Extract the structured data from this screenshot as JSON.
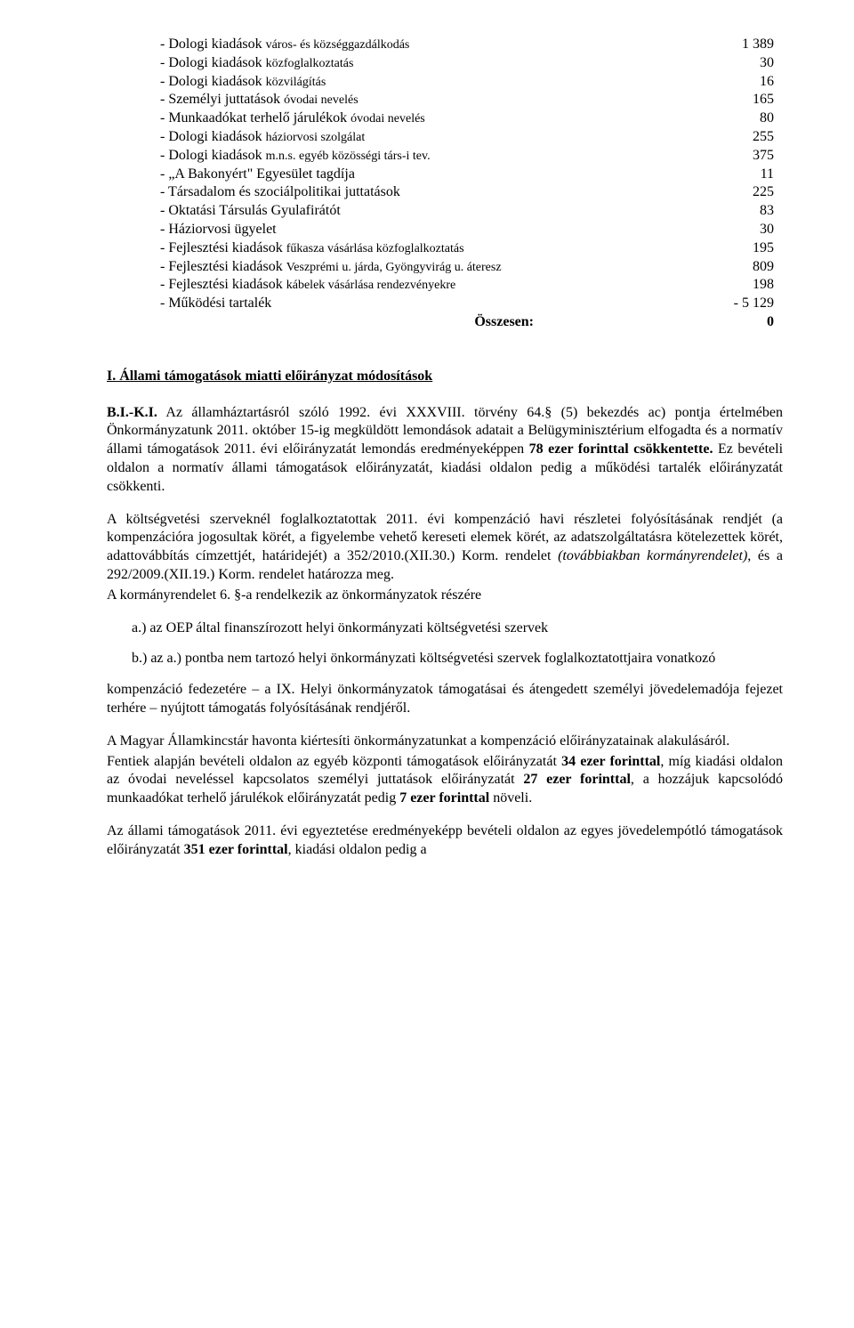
{
  "budget": {
    "rows": [
      {
        "label_main": "- Dologi kiadások ",
        "label_small": "város- és községgazdálkodás",
        "value": "1 389"
      },
      {
        "label_main": "- Dologi kiadások ",
        "label_small": "közfoglalkoztatás",
        "value": "30"
      },
      {
        "label_main": "- Dologi kiadások ",
        "label_small": "közvilágítás",
        "value": "16"
      },
      {
        "label_main": "- Személyi juttatások ",
        "label_small": "óvodai nevelés",
        "value": "165"
      },
      {
        "label_main": "- Munkaadókat terhelő járulékok ",
        "label_small": "óvodai nevelés",
        "value": "80"
      },
      {
        "label_main": "- Dologi kiadások ",
        "label_small": "háziorvosi szolgálat",
        "value": "255"
      },
      {
        "label_main": "- Dologi kiadások ",
        "label_small": "m.n.s. egyéb közösségi társ-i tev.",
        "value": "375"
      },
      {
        "label_main": "- „A Bakonyért\" Egyesület tagdíja",
        "label_small": "",
        "value": "11"
      },
      {
        "label_main": "- Társadalom és szociálpolitikai juttatások",
        "label_small": "",
        "value": "225"
      },
      {
        "label_main": "- Oktatási Társulás Gyulafirátót",
        "label_small": "",
        "value": "83"
      },
      {
        "label_main": "- Háziorvosi ügyelet",
        "label_small": "",
        "value": "30"
      },
      {
        "label_main": "- Fejlesztési kiadások ",
        "label_small": "fűkasza vásárlása közfoglalkoztatás",
        "value": "195"
      },
      {
        "label_main": "- Fejlesztési kiadások ",
        "label_small": "Veszprémi u. járda, Gyöngyvirág u. áteresz",
        "value": "809",
        "indent": true
      },
      {
        "label_main": "- Fejlesztési kiadások ",
        "label_small": "kábelek vásárlása rendezvényekre",
        "value": "198"
      },
      {
        "label_main": "- Működési tartalék",
        "label_small": "",
        "value": "- 5 129"
      }
    ],
    "total_label": "Összesen:",
    "total_value": "0"
  },
  "heading": "I. Állami támogatások miatti előirányzat módosítások",
  "paras": {
    "p1_a": "B.I.-K.I.",
    "p1_b": " Az államháztartásról szóló 1992. évi XXXVIII. törvény 64.§ (5) bekezdés ac) pontja értelmében Önkormányzatunk 2011. október 15-ig megküldött lemondások adatait a Belügyminisztérium elfogadta és a normatív állami támogatások 2011. évi előirányzatát lemondás eredményeképpen ",
    "p1_c": "78 ezer forinttal csökkentette.",
    "p1_d": " Ez bevételi oldalon a normatív állami támogatások előirányzatát, kiadási oldalon pedig a működési tartalék előirányzatát csökkenti.",
    "p2_a": "A költségvetési szerveknél foglalkoztatottak 2011. évi kompenzáció havi részletei folyósításának rendjét (a kompenzációra jogosultak körét, a figyelembe vehető kereseti elemek körét, az adatszolgáltatásra kötelezettek körét, adattovábbítás címzettjét, határidejét) a 352/2010.(XII.30.) Korm. rendelet ",
    "p2_b": "(továbbiakban kormányrendelet)",
    "p2_c": ", és a 292/2009.(XII.19.) Korm. rendelet határozza meg.",
    "p2_line2": "A kormányrendelet 6. §-a rendelkezik az önkormányzatok részére",
    "sub_a": "a.) az OEP által finanszírozott helyi önkormányzati költségvetési szervek",
    "sub_b": "b.) az a.) pontba nem tartozó helyi önkormányzati költségvetési szervek foglalkoztatottjaira vonatkozó",
    "p3": "kompenzáció fedezetére – a IX. Helyi önkormányzatok támogatásai és átengedett személyi jövedelemadója fejezet terhére – nyújtott támogatás folyósításának rendjéről.",
    "p4_line1": "A Magyar Államkincstár havonta kiértesíti önkormányzatunkat a kompenzáció előirányzatainak alakulásáról.",
    "p4_a": "Fentiek alapján bevételi oldalon az egyéb központi támogatások előirányzatát ",
    "p4_b": "34 ezer forinttal",
    "p4_c": ", míg kiadási oldalon az óvodai neveléssel kapcsolatos személyi juttatások előirányzatát ",
    "p4_d": "27 ezer forinttal",
    "p4_e": ", a hozzájuk kapcsolódó munkaadókat terhelő járulékok előirányzatát pedig ",
    "p4_f": "7 ezer forinttal",
    "p4_g": " növeli.",
    "p5_a": "Az állami támogatások 2011. évi egyeztetése eredményeképp bevételi oldalon az egyes jövedelempótló támogatások előirányzatát ",
    "p5_b": "351 ezer forinttal",
    "p5_c": ", kiadási oldalon pedig a"
  }
}
